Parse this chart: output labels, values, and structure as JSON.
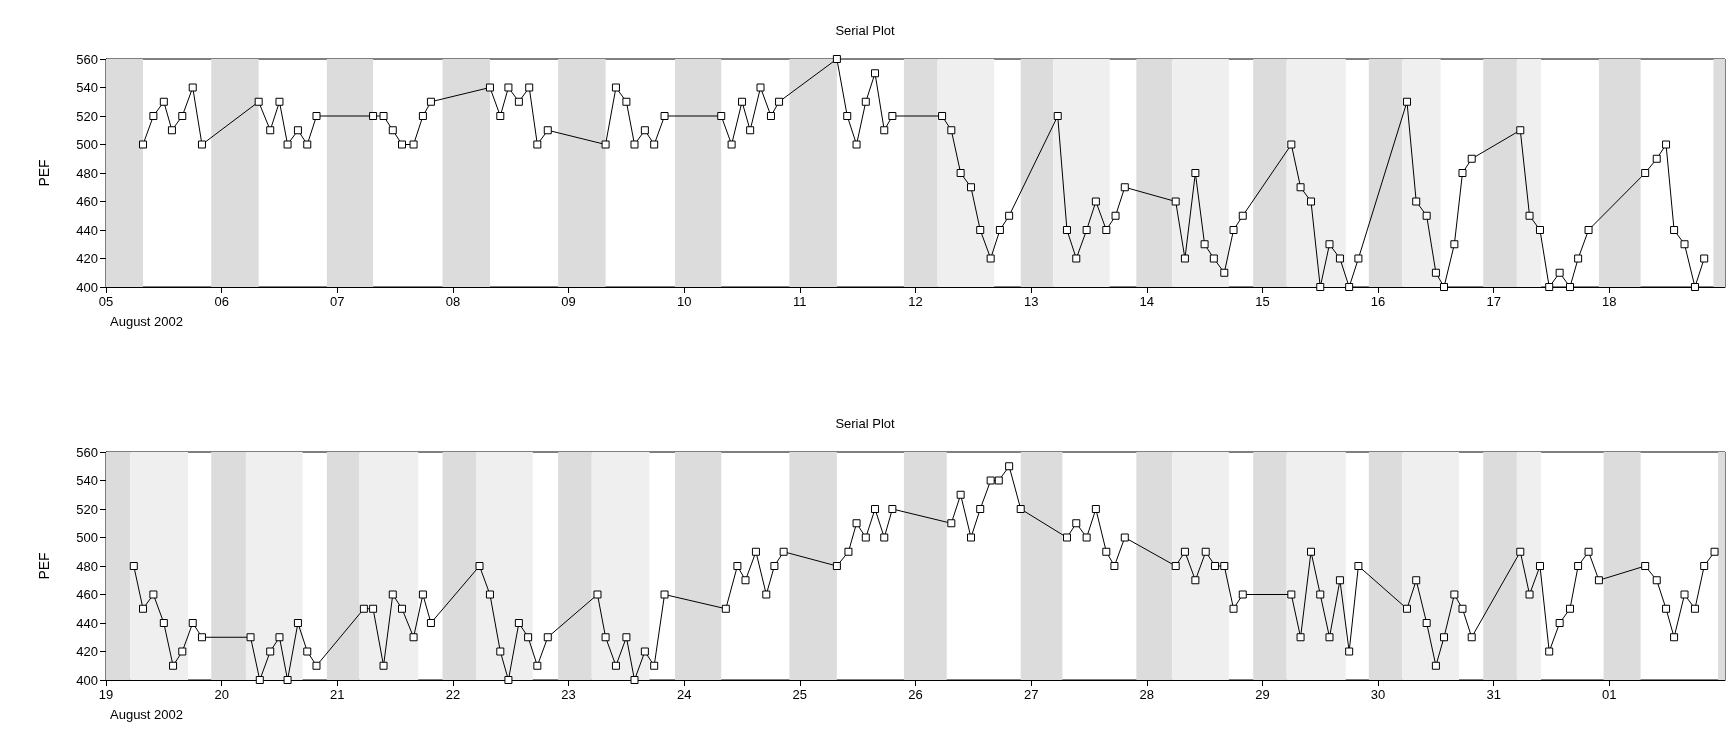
{
  "chart_data": [
    {
      "type": "line",
      "title": "Serial Plot",
      "xlabel": "August 2002",
      "ylabel": "PEF",
      "marker": "square",
      "line_style": "solid",
      "grid": false,
      "xlim": [
        "2002-08-05",
        "2002-08-19"
      ],
      "ylim": [
        400,
        560
      ],
      "yticks": [
        400,
        420,
        440,
        460,
        480,
        500,
        520,
        540,
        560
      ],
      "xticks": [
        {
          "value": "2002-08-05",
          "label": "05"
        },
        {
          "value": "2002-08-06",
          "label": "06"
        },
        {
          "value": "2002-08-07",
          "label": "07"
        },
        {
          "value": "2002-08-08",
          "label": "08"
        },
        {
          "value": "2002-08-09",
          "label": "09"
        },
        {
          "value": "2002-08-10",
          "label": "10"
        },
        {
          "value": "2002-08-11",
          "label": "11"
        },
        {
          "value": "2002-08-12",
          "label": "12"
        },
        {
          "value": "2002-08-13",
          "label": "13"
        },
        {
          "value": "2002-08-14",
          "label": "14"
        },
        {
          "value": "2002-08-15",
          "label": "15"
        },
        {
          "value": "2002-08-16",
          "label": "16"
        },
        {
          "value": "2002-08-17",
          "label": "17"
        },
        {
          "value": "2002-08-18",
          "label": "18"
        }
      ],
      "series": [
        {
          "color": "#000000",
          "x": [
            "2002-08-05T07:41",
            "2002-08-05T09:50",
            "2002-08-05T12:00",
            "2002-08-05T13:41",
            "2002-08-05T15:50",
            "2002-08-05T18:00",
            "2002-08-05T19:55",
            "2002-08-06T07:41",
            "2002-08-06T10:05",
            "2002-08-06T12:00",
            "2002-08-06T13:41",
            "2002-08-06T15:50",
            "2002-08-06T17:46",
            "2002-08-06T19:41",
            "2002-08-07T07:26",
            "2002-08-07T09:36",
            "2002-08-07T11:31",
            "2002-08-07T13:26",
            "2002-08-07T15:50",
            "2002-08-07T17:46",
            "2002-08-07T19:26",
            "2002-08-08T07:41",
            "2002-08-08T09:50",
            "2002-08-08T11:31",
            "2002-08-08T13:41",
            "2002-08-08T15:50",
            "2002-08-08T17:31",
            "2002-08-08T19:41",
            "2002-08-09T07:41",
            "2002-08-09T09:50",
            "2002-08-09T12:00",
            "2002-08-09T13:41",
            "2002-08-09T15:50",
            "2002-08-09T17:46",
            "2002-08-09T19:55",
            "2002-08-10T07:41",
            "2002-08-10T09:50",
            "2002-08-10T12:00",
            "2002-08-10T13:41",
            "2002-08-10T15:50",
            "2002-08-10T18:00",
            "2002-08-10T19:41",
            "2002-08-11T07:41",
            "2002-08-11T09:50",
            "2002-08-11T11:46",
            "2002-08-11T13:41",
            "2002-08-11T15:36",
            "2002-08-11T17:31",
            "2002-08-11T19:12",
            "2002-08-12T05:31",
            "2002-08-12T07:26",
            "2002-08-12T09:22",
            "2002-08-12T11:31",
            "2002-08-12T13:26",
            "2002-08-12T15:36",
            "2002-08-12T17:31",
            "2002-08-12T19:26",
            "2002-08-13T05:31",
            "2002-08-13T07:26",
            "2002-08-13T09:22",
            "2002-08-13T11:31",
            "2002-08-13T13:26",
            "2002-08-13T15:36",
            "2002-08-13T17:31",
            "2002-08-13T19:26",
            "2002-08-14T06:00",
            "2002-08-14T07:55",
            "2002-08-14T10:05",
            "2002-08-14T12:00",
            "2002-08-14T13:55",
            "2002-08-14T16:05",
            "2002-08-14T18:00",
            "2002-08-14T19:55",
            "2002-08-15T06:00",
            "2002-08-15T07:55",
            "2002-08-15T10:05",
            "2002-08-15T12:00",
            "2002-08-15T13:55",
            "2002-08-15T16:05",
            "2002-08-15T18:00",
            "2002-08-15T19:55",
            "2002-08-16T06:00",
            "2002-08-16T07:55",
            "2002-08-16T10:05",
            "2002-08-16T12:00",
            "2002-08-16T13:41",
            "2002-08-16T15:50",
            "2002-08-16T17:31",
            "2002-08-16T19:26",
            "2002-08-17T05:31",
            "2002-08-17T07:26",
            "2002-08-17T09:36",
            "2002-08-17T11:31",
            "2002-08-17T13:41",
            "2002-08-17T15:50",
            "2002-08-17T17:31",
            "2002-08-17T19:41",
            "2002-08-18T07:26",
            "2002-08-18T09:50",
            "2002-08-18T11:46",
            "2002-08-18T13:26",
            "2002-08-18T15:36",
            "2002-08-18T17:46",
            "2002-08-18T19:41"
          ],
          "values": [
            500,
            520,
            530,
            510,
            520,
            540,
            500,
            530,
            510,
            530,
            500,
            510,
            500,
            520,
            520,
            520,
            510,
            500,
            500,
            520,
            530,
            540,
            520,
            540,
            530,
            540,
            500,
            510,
            500,
            540,
            530,
            500,
            510,
            500,
            520,
            520,
            500,
            530,
            510,
            540,
            520,
            530,
            560,
            520,
            500,
            530,
            550,
            510,
            520,
            520,
            510,
            480,
            470,
            440,
            420,
            440,
            450,
            520,
            440,
            420,
            440,
            460,
            440,
            450,
            470,
            460,
            420,
            480,
            430,
            420,
            410,
            440,
            450,
            500,
            470,
            460,
            400,
            430,
            420,
            400,
            420,
            530,
            460,
            450,
            410,
            400,
            430,
            480,
            490,
            510,
            450,
            440,
            400,
            410,
            400,
            420,
            440,
            480,
            490,
            500,
            440,
            430,
            400,
            420
          ]
        }
      ],
      "bands": [
        {
          "axis": "x",
          "from": "2002-08-05T00:00",
          "to": "2002-08-05T07:41",
          "color": "#dcdcdc"
        },
        {
          "axis": "x",
          "from": "2002-08-05T21:50",
          "to": "2002-08-06T07:41",
          "color": "#dcdcdc"
        },
        {
          "axis": "x",
          "from": "2002-08-06T21:50",
          "to": "2002-08-07T07:26",
          "color": "#dcdcdc"
        },
        {
          "axis": "x",
          "from": "2002-08-07T21:50",
          "to": "2002-08-08T07:41",
          "color": "#dcdcdc"
        },
        {
          "axis": "x",
          "from": "2002-08-08T21:50",
          "to": "2002-08-09T07:41",
          "color": "#dcdcdc"
        },
        {
          "axis": "x",
          "from": "2002-08-09T22:05",
          "to": "2002-08-10T07:41",
          "color": "#dcdcdc"
        },
        {
          "axis": "x",
          "from": "2002-08-10T21:50",
          "to": "2002-08-11T07:41",
          "color": "#dcdcdc"
        },
        {
          "axis": "x",
          "from": "2002-08-11T21:36",
          "to": "2002-08-12T04:34",
          "color": "#dcdcdc"
        },
        {
          "axis": "x",
          "from": "2002-08-12T21:50",
          "to": "2002-08-13T04:34",
          "color": "#dcdcdc"
        },
        {
          "axis": "x",
          "from": "2002-08-13T21:50",
          "to": "2002-08-14T05:17",
          "color": "#dcdcdc"
        },
        {
          "axis": "x",
          "from": "2002-08-14T22:05",
          "to": "2002-08-15T05:02",
          "color": "#dcdcdc"
        },
        {
          "axis": "x",
          "from": "2002-08-15T22:05",
          "to": "2002-08-16T05:02",
          "color": "#dcdcdc"
        },
        {
          "axis": "x",
          "from": "2002-08-16T21:50",
          "to": "2002-08-17T04:48",
          "color": "#dcdcdc"
        },
        {
          "axis": "x",
          "from": "2002-08-17T21:50",
          "to": "2002-08-18T06:29",
          "color": "#dcdcdc"
        },
        {
          "axis": "x",
          "from": "2002-08-18T21:36",
          "to": "2002-08-19T00:00",
          "color": "#dcdcdc"
        },
        {
          "axis": "x",
          "from": "2002-08-12T04:34",
          "to": "2002-08-12T16:19",
          "color": "#efefef"
        },
        {
          "axis": "x",
          "from": "2002-08-13T04:34",
          "to": "2002-08-13T16:19",
          "color": "#efefef"
        },
        {
          "axis": "x",
          "from": "2002-08-14T05:17",
          "to": "2002-08-14T17:02",
          "color": "#efefef"
        },
        {
          "axis": "x",
          "from": "2002-08-15T05:02",
          "to": "2002-08-15T17:17",
          "color": "#efefef"
        },
        {
          "axis": "x",
          "from": "2002-08-16T05:02",
          "to": "2002-08-16T12:58",
          "color": "#efefef"
        },
        {
          "axis": "x",
          "from": "2002-08-17T04:48",
          "to": "2002-08-17T09:50",
          "color": "#efefef"
        }
      ]
    },
    {
      "type": "line",
      "title": "Serial Plot",
      "xlabel": "August 2002",
      "ylabel": "PEF",
      "marker": "square",
      "line_style": "solid",
      "grid": false,
      "xlim": [
        "2002-08-19",
        "2002-09-02"
      ],
      "ylim": [
        400,
        560
      ],
      "yticks": [
        400,
        420,
        440,
        460,
        480,
        500,
        520,
        540,
        560
      ],
      "xticks": [
        {
          "value": "2002-08-19",
          "label": "19"
        },
        {
          "value": "2002-08-20",
          "label": "20"
        },
        {
          "value": "2002-08-21",
          "label": "21"
        },
        {
          "value": "2002-08-22",
          "label": "22"
        },
        {
          "value": "2002-08-23",
          "label": "23"
        },
        {
          "value": "2002-08-24",
          "label": "24"
        },
        {
          "value": "2002-08-25",
          "label": "25"
        },
        {
          "value": "2002-08-26",
          "label": "26"
        },
        {
          "value": "2002-08-27",
          "label": "27"
        },
        {
          "value": "2002-08-28",
          "label": "28"
        },
        {
          "value": "2002-08-29",
          "label": "29"
        },
        {
          "value": "2002-08-30",
          "label": "30"
        },
        {
          "value": "2002-08-31",
          "label": "31"
        },
        {
          "value": "2002-09-01",
          "label": "01"
        }
      ],
      "series": [
        {
          "color": "#000000",
          "x": [
            "2002-08-19T05:46",
            "2002-08-19T07:41",
            "2002-08-19T09:50",
            "2002-08-19T12:00",
            "2002-08-19T13:55",
            "2002-08-19T15:50",
            "2002-08-19T18:00",
            "2002-08-19T19:55",
            "2002-08-20T06:00",
            "2002-08-20T07:55",
            "2002-08-20T10:05",
            "2002-08-20T12:00",
            "2002-08-20T13:41",
            "2002-08-20T15:50",
            "2002-08-20T17:46",
            "2002-08-20T19:41",
            "2002-08-21T05:31",
            "2002-08-21T07:26",
            "2002-08-21T09:36",
            "2002-08-21T11:31",
            "2002-08-21T13:26",
            "2002-08-21T15:50",
            "2002-08-21T17:46",
            "2002-08-21T19:26",
            "2002-08-22T05:31",
            "2002-08-22T07:41",
            "2002-08-22T09:50",
            "2002-08-22T11:31",
            "2002-08-22T13:41",
            "2002-08-22T15:36",
            "2002-08-22T17:31",
            "2002-08-22T19:41",
            "2002-08-23T06:00",
            "2002-08-23T07:41",
            "2002-08-23T09:50",
            "2002-08-23T12:00",
            "2002-08-23T13:41",
            "2002-08-23T15:50",
            "2002-08-23T17:46",
            "2002-08-23T19:55",
            "2002-08-24T08:38",
            "2002-08-24T11:02",
            "2002-08-24T12:43",
            "2002-08-24T14:53",
            "2002-08-24T17:02",
            "2002-08-24T18:43",
            "2002-08-24T20:38",
            "2002-08-25T07:41",
            "2002-08-25T10:05",
            "2002-08-25T11:46",
            "2002-08-25T13:41",
            "2002-08-25T15:36",
            "2002-08-25T17:31",
            "2002-08-25T19:12",
            "2002-08-26T07:26",
            "2002-08-26T09:22",
            "2002-08-26T11:31",
            "2002-08-26T13:26",
            "2002-08-26T15:36",
            "2002-08-26T17:17",
            "2002-08-26T19:26",
            "2002-08-26T21:50",
            "2002-08-27T07:26",
            "2002-08-27T09:22",
            "2002-08-27T11:31",
            "2002-08-27T13:26",
            "2002-08-27T15:36",
            "2002-08-27T17:17",
            "2002-08-27T19:26",
            "2002-08-28T06:00",
            "2002-08-28T07:55",
            "2002-08-28T10:05",
            "2002-08-28T12:14",
            "2002-08-28T14:10",
            "2002-08-28T16:05",
            "2002-08-28T18:00",
            "2002-08-28T19:55",
            "2002-08-29T06:00",
            "2002-08-29T07:55",
            "2002-08-29T10:05",
            "2002-08-29T12:00",
            "2002-08-29T13:55",
            "2002-08-29T16:05",
            "2002-08-29T18:00",
            "2002-08-29T19:55",
            "2002-08-30T06:00",
            "2002-08-30T07:55",
            "2002-08-30T10:05",
            "2002-08-30T12:00",
            "2002-08-30T13:41",
            "2002-08-30T15:50",
            "2002-08-30T17:31",
            "2002-08-30T19:26",
            "2002-08-31T05:31",
            "2002-08-31T07:26",
            "2002-08-31T09:36",
            "2002-08-31T11:31",
            "2002-08-31T13:41",
            "2002-08-31T15:50",
            "2002-08-31T17:31",
            "2002-08-31T19:41",
            "2002-08-31T21:50",
            "2002-09-01T07:26",
            "2002-09-01T09:50",
            "2002-09-01T11:46",
            "2002-09-01T13:26",
            "2002-09-01T15:36",
            "2002-09-01T17:46",
            "2002-09-01T19:41",
            "2002-09-01T21:50"
          ],
          "values": [
            480,
            450,
            460,
            440,
            410,
            420,
            440,
            430,
            430,
            400,
            420,
            430,
            400,
            440,
            420,
            410,
            450,
            450,
            410,
            460,
            450,
            430,
            460,
            440,
            480,
            460,
            420,
            400,
            440,
            430,
            410,
            430,
            460,
            430,
            410,
            430,
            400,
            420,
            410,
            460,
            450,
            480,
            470,
            490,
            460,
            480,
            490,
            480,
            490,
            510,
            500,
            520,
            500,
            520,
            510,
            530,
            500,
            520,
            540,
            540,
            550,
            520,
            500,
            510,
            500,
            520,
            490,
            480,
            500,
            480,
            490,
            470,
            490,
            480,
            480,
            450,
            460,
            460,
            430,
            490,
            460,
            430,
            470,
            420,
            480,
            450,
            470,
            440,
            410,
            430,
            460,
            450,
            430,
            490,
            460,
            480,
            420,
            440,
            450,
            480,
            490,
            470,
            480,
            470,
            450,
            430,
            460,
            450,
            480,
            490
          ]
        }
      ],
      "bands": [
        {
          "axis": "x",
          "from": "2002-08-19T00:00",
          "to": "2002-08-19T05:02",
          "color": "#dcdcdc"
        },
        {
          "axis": "x",
          "from": "2002-08-19T21:50",
          "to": "2002-08-20T05:02",
          "color": "#dcdcdc"
        },
        {
          "axis": "x",
          "from": "2002-08-20T21:50",
          "to": "2002-08-21T04:34",
          "color": "#dcdcdc"
        },
        {
          "axis": "x",
          "from": "2002-08-21T21:50",
          "to": "2002-08-22T04:48",
          "color": "#dcdcdc"
        },
        {
          "axis": "x",
          "from": "2002-08-22T21:50",
          "to": "2002-08-23T04:48",
          "color": "#dcdcdc"
        },
        {
          "axis": "x",
          "from": "2002-08-23T22:05",
          "to": "2002-08-24T07:41",
          "color": "#dcdcdc"
        },
        {
          "axis": "x",
          "from": "2002-08-24T21:50",
          "to": "2002-08-25T07:41",
          "color": "#dcdcdc"
        },
        {
          "axis": "x",
          "from": "2002-08-25T21:36",
          "to": "2002-08-26T06:29",
          "color": "#dcdcdc"
        },
        {
          "axis": "x",
          "from": "2002-08-26T21:50",
          "to": "2002-08-27T06:29",
          "color": "#dcdcdc"
        },
        {
          "axis": "x",
          "from": "2002-08-27T21:50",
          "to": "2002-08-28T05:17",
          "color": "#dcdcdc"
        },
        {
          "axis": "x",
          "from": "2002-08-28T22:05",
          "to": "2002-08-29T05:02",
          "color": "#dcdcdc"
        },
        {
          "axis": "x",
          "from": "2002-08-29T22:05",
          "to": "2002-08-30T05:02",
          "color": "#dcdcdc"
        },
        {
          "axis": "x",
          "from": "2002-08-30T21:50",
          "to": "2002-08-31T04:48",
          "color": "#dcdcdc"
        },
        {
          "axis": "x",
          "from": "2002-08-31T22:48",
          "to": "2002-09-01T06:29",
          "color": "#dcdcdc"
        },
        {
          "axis": "x",
          "from": "2002-09-01T22:34",
          "to": "2002-09-02T00:00",
          "color": "#dcdcdc"
        },
        {
          "axis": "x",
          "from": "2002-08-19T05:02",
          "to": "2002-08-19T17:02",
          "color": "#efefef"
        },
        {
          "axis": "x",
          "from": "2002-08-20T05:02",
          "to": "2002-08-20T16:48",
          "color": "#efefef"
        },
        {
          "axis": "x",
          "from": "2002-08-21T04:34",
          "to": "2002-08-21T16:48",
          "color": "#efefef"
        },
        {
          "axis": "x",
          "from": "2002-08-22T04:48",
          "to": "2002-08-22T16:34",
          "color": "#efefef"
        },
        {
          "axis": "x",
          "from": "2002-08-23T04:48",
          "to": "2002-08-23T16:48",
          "color": "#efefef"
        },
        {
          "axis": "x",
          "from": "2002-08-28T05:17",
          "to": "2002-08-28T17:02",
          "color": "#efefef"
        },
        {
          "axis": "x",
          "from": "2002-08-29T05:02",
          "to": "2002-08-29T17:17",
          "color": "#efefef"
        },
        {
          "axis": "x",
          "from": "2002-08-30T05:02",
          "to": "2002-08-30T16:48",
          "color": "#efefef"
        },
        {
          "axis": "x",
          "from": "2002-08-31T04:48",
          "to": "2002-08-31T09:50",
          "color": "#efefef"
        }
      ]
    }
  ]
}
